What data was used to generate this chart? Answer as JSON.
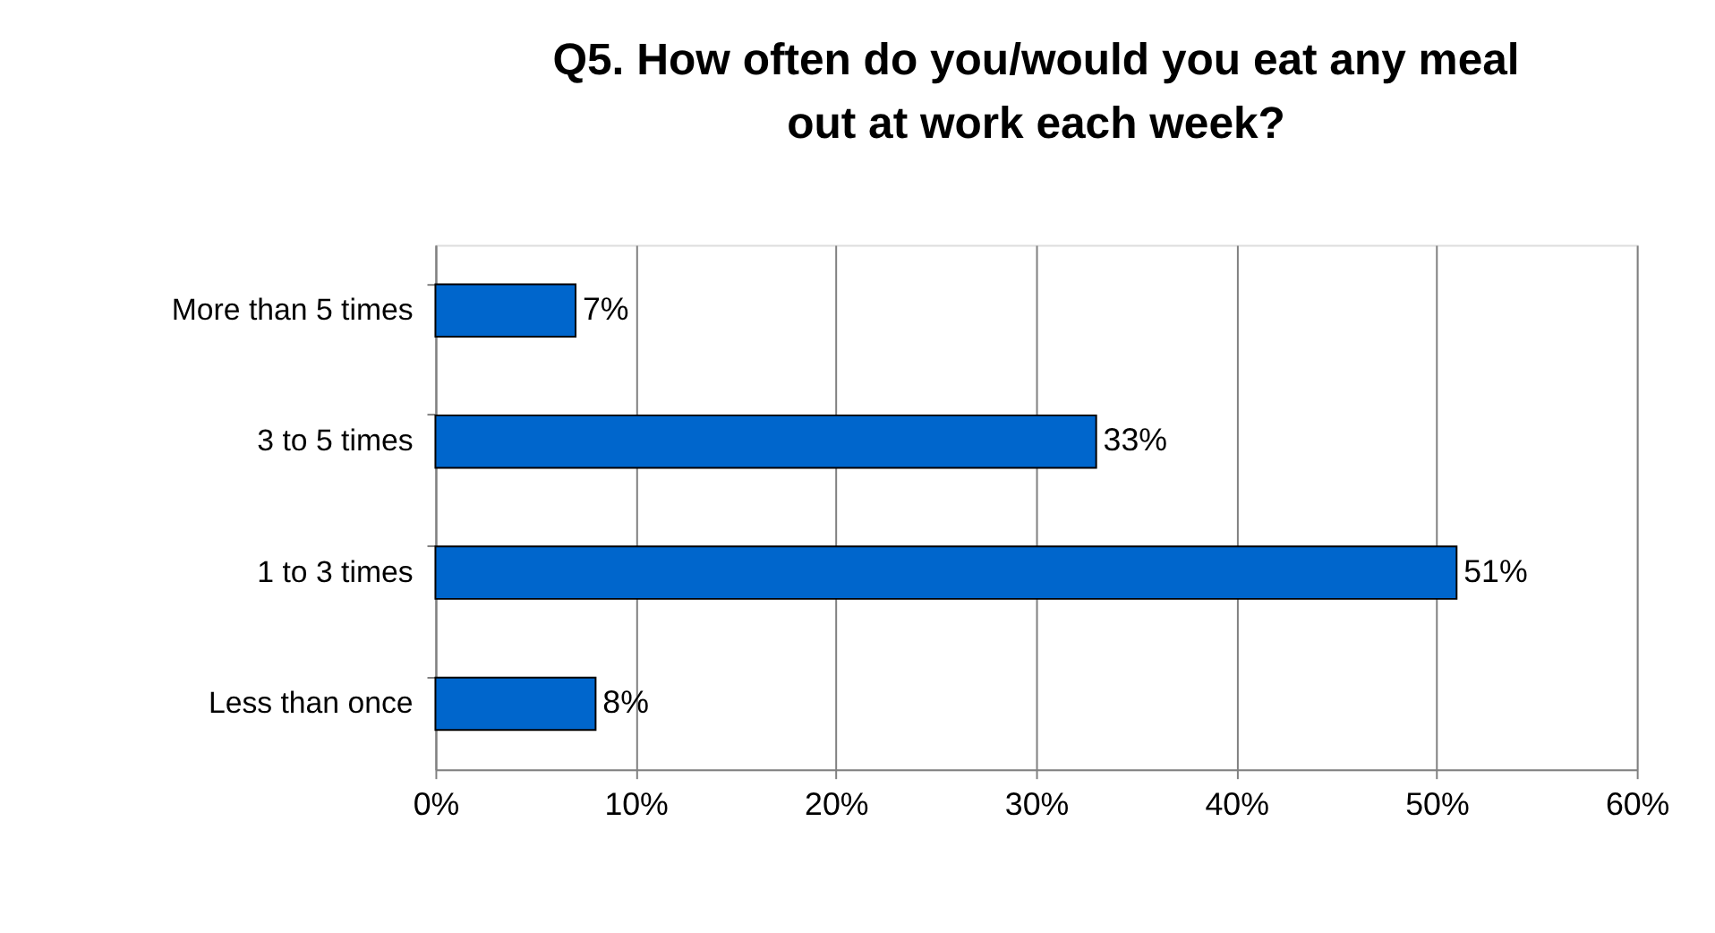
{
  "chart_data": {
    "type": "bar",
    "orientation": "horizontal",
    "title": [
      "Q5.  How often do you/would you eat any meal",
      "out at work each week?"
    ],
    "categories": [
      "More than 5 times",
      "3 to 5 times",
      "1 to 3 times",
      "Less than once"
    ],
    "values": [
      7,
      33,
      51,
      8
    ],
    "value_labels": [
      "7%",
      "33%",
      "51%",
      "8%"
    ],
    "color": "#0066cc",
    "xlim": [
      0,
      60
    ],
    "xticks": [
      {
        "value": 0,
        "label": "0%"
      },
      {
        "value": 10,
        "label": "10%"
      },
      {
        "value": 20,
        "label": "20%"
      },
      {
        "value": 30,
        "label": "30%"
      },
      {
        "value": 40,
        "label": "40%"
      },
      {
        "value": 50,
        "label": "50%"
      },
      {
        "value": 60,
        "label": "60%"
      }
    ],
    "grid": "x"
  }
}
